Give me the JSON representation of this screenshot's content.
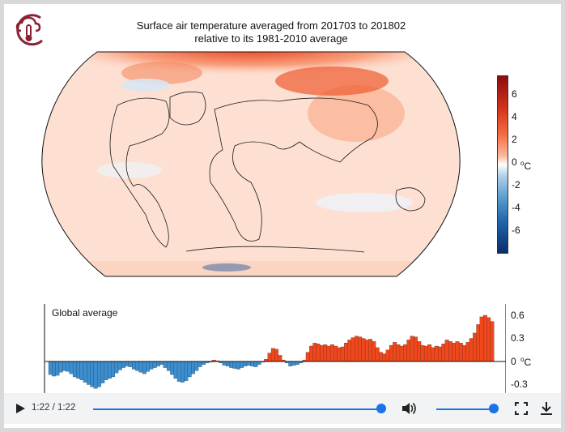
{
  "title_line1": "Surface air temperature averaged from 201703 to 201802",
  "title_line2": "relative to its 1981-2010 average",
  "colorbar": {
    "ticks": [
      "6",
      "4",
      "2",
      "0",
      "-2",
      "-4",
      "-6"
    ],
    "unit_base": "C",
    "unit_sup": "o",
    "range": [
      -8,
      8
    ]
  },
  "chart_data": {
    "type": "bar",
    "title": "Global average",
    "ylim": [
      -0.4,
      0.7
    ],
    "yticks": [
      "0.6",
      "0.3",
      "0",
      "-0.3"
    ],
    "unit": "°C",
    "colors": {
      "positive": "#f0481c",
      "negative": "#3b8fd1"
    },
    "series": [
      {
        "values": [
          -0.17,
          -0.19,
          -0.18,
          -0.14,
          -0.12,
          -0.13,
          -0.16,
          -0.2,
          -0.22,
          -0.24,
          -0.27,
          -0.3,
          -0.33,
          -0.35,
          -0.33,
          -0.28,
          -0.24,
          -0.22,
          -0.2,
          -0.15,
          -0.11,
          -0.08,
          -0.06,
          -0.07,
          -0.1,
          -0.12,
          -0.14,
          -0.16,
          -0.13,
          -0.1,
          -0.08,
          -0.06,
          -0.04,
          -0.08,
          -0.12,
          -0.17,
          -0.22,
          -0.26,
          -0.27,
          -0.25,
          -0.2,
          -0.16,
          -0.12,
          -0.07,
          -0.04,
          -0.02,
          -0.01,
          0.02,
          0.01,
          -0.02,
          -0.05,
          -0.06,
          -0.08,
          -0.09,
          -0.1,
          -0.08,
          -0.06,
          -0.05,
          -0.06,
          -0.07,
          -0.04,
          -0.01,
          0.03,
          0.11,
          0.17,
          0.16,
          0.08,
          0.02,
          -0.02,
          -0.06,
          -0.05,
          -0.04,
          -0.02,
          0.02,
          0.12,
          0.2,
          0.24,
          0.23,
          0.21,
          0.22,
          0.2,
          0.22,
          0.2,
          0.18,
          0.19,
          0.24,
          0.28,
          0.31,
          0.33,
          0.32,
          0.3,
          0.28,
          0.29,
          0.26,
          0.18,
          0.12,
          0.1,
          0.15,
          0.21,
          0.25,
          0.22,
          0.2,
          0.22,
          0.28,
          0.33,
          0.32,
          0.26,
          0.21,
          0.2,
          0.22,
          0.18,
          0.2,
          0.19,
          0.23,
          0.28,
          0.26,
          0.24,
          0.26,
          0.24,
          0.21,
          0.25,
          0.3,
          0.37,
          0.48,
          0.58,
          0.6,
          0.57,
          0.52
        ]
      }
    ]
  },
  "player": {
    "time": "1:22 / 1:22",
    "progress": 1.0,
    "volume": 0.95,
    "icons": [
      "play-icon",
      "volume-icon",
      "fullscreen-icon",
      "download-icon"
    ]
  },
  "logo_icon": "cloud-thermometer-icon"
}
